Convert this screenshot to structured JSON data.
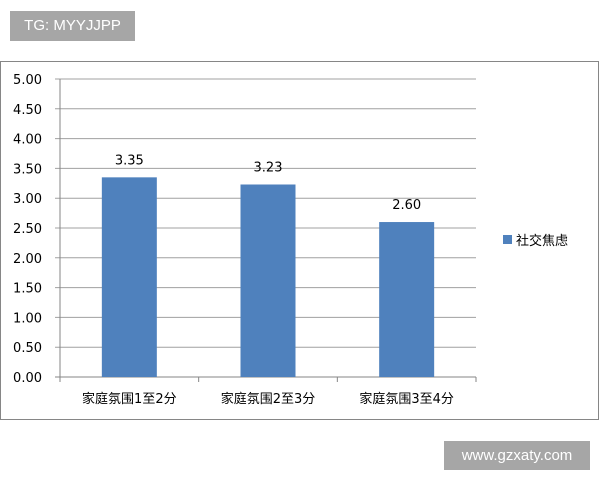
{
  "watermark_top": "TG: MYYJJPP",
  "watermark_bottom": "www.gzxaty.com",
  "chart_data": {
    "type": "bar",
    "categories": [
      "家庭氛围1至2分",
      "家庭氛围2至3分",
      "家庭氛围3至4分"
    ],
    "series": [
      {
        "name": "社交焦虑",
        "values": [
          3.35,
          3.23,
          2.6
        ],
        "labels": [
          "3.35",
          "3.23",
          "2.60"
        ],
        "color": "#4f81bd"
      }
    ],
    "ylim": [
      0,
      5
    ],
    "yticks": [
      "0.00",
      "0.50",
      "1.00",
      "1.50",
      "2.00",
      "2.50",
      "3.00",
      "3.50",
      "4.00",
      "4.50",
      "5.00"
    ],
    "grid": true,
    "legend": "right"
  }
}
